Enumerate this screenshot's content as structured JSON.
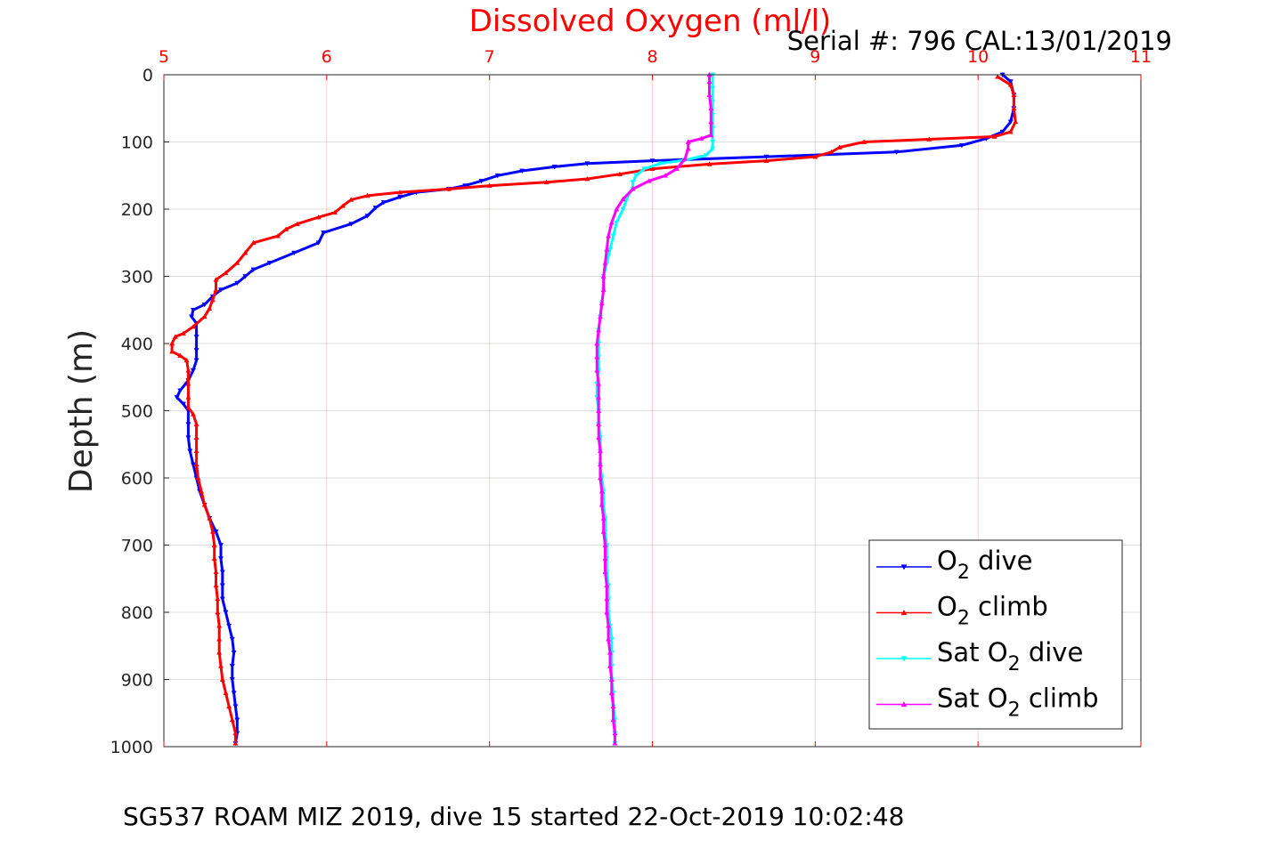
{
  "chart_data": {
    "type": "line",
    "title": "Dissolved Oxygen (ml/l)",
    "subtitle": "Serial #: 796  CAL:13/01/2019",
    "caption": "SG537 ROAM MIZ 2019, dive 15 started 22-Oct-2019 10:02:48",
    "xlabel": "",
    "ylabel": "Depth (m)",
    "xlim": [
      5,
      11
    ],
    "ylim": [
      0,
      1000
    ],
    "y_reversed": true,
    "x_axis_position": "top",
    "xticks": [
      "5",
      "6",
      "7",
      "8",
      "9",
      "10",
      "11"
    ],
    "yticks": [
      "0",
      "100",
      "200",
      "300",
      "400",
      "500",
      "600",
      "700",
      "800",
      "900",
      "1000"
    ],
    "grid": true,
    "legend_position": "bottom-right",
    "colors": {
      "title": "#ff0000",
      "xtick": "#ff0000"
    },
    "series": [
      {
        "name": "O2 dive",
        "legend": {
          "main": "O",
          "sub": "2",
          "suffix": " dive",
          "prefix": ""
        },
        "color": "#0000ff",
        "marker": "triangle-down",
        "points": [
          [
            10.15,
            0
          ],
          [
            10.2,
            10
          ],
          [
            10.22,
            30
          ],
          [
            10.22,
            50
          ],
          [
            10.2,
            70
          ],
          [
            10.15,
            85
          ],
          [
            10.05,
            95
          ],
          [
            9.9,
            105
          ],
          [
            9.5,
            115
          ],
          [
            8.7,
            122
          ],
          [
            8.0,
            128
          ],
          [
            7.6,
            132
          ],
          [
            7.4,
            137
          ],
          [
            7.2,
            143
          ],
          [
            7.05,
            150
          ],
          [
            6.95,
            158
          ],
          [
            6.85,
            165
          ],
          [
            6.75,
            170
          ],
          [
            6.55,
            175
          ],
          [
            6.45,
            182
          ],
          [
            6.35,
            190
          ],
          [
            6.3,
            198
          ],
          [
            6.25,
            210
          ],
          [
            6.15,
            222
          ],
          [
            5.98,
            235
          ],
          [
            5.95,
            250
          ],
          [
            5.8,
            265
          ],
          [
            5.65,
            280
          ],
          [
            5.55,
            290
          ],
          [
            5.5,
            300
          ],
          [
            5.45,
            310
          ],
          [
            5.35,
            320
          ],
          [
            5.3,
            330
          ],
          [
            5.25,
            342
          ],
          [
            5.18,
            350
          ],
          [
            5.17,
            360
          ],
          [
            5.2,
            370
          ],
          [
            5.2,
            390
          ],
          [
            5.2,
            410
          ],
          [
            5.2,
            425
          ],
          [
            5.18,
            440
          ],
          [
            5.15,
            455
          ],
          [
            5.1,
            470
          ],
          [
            5.08,
            480
          ],
          [
            5.12,
            490
          ],
          [
            5.15,
            500
          ],
          [
            5.15,
            520
          ],
          [
            5.15,
            540
          ],
          [
            5.16,
            560
          ],
          [
            5.18,
            580
          ],
          [
            5.2,
            600
          ],
          [
            5.22,
            620
          ],
          [
            5.25,
            640
          ],
          [
            5.28,
            660
          ],
          [
            5.32,
            680
          ],
          [
            5.35,
            700
          ],
          [
            5.35,
            720
          ],
          [
            5.36,
            740
          ],
          [
            5.36,
            760
          ],
          [
            5.36,
            780
          ],
          [
            5.38,
            800
          ],
          [
            5.4,
            820
          ],
          [
            5.42,
            840
          ],
          [
            5.43,
            860
          ],
          [
            5.42,
            880
          ],
          [
            5.42,
            900
          ],
          [
            5.43,
            920
          ],
          [
            5.44,
            940
          ],
          [
            5.45,
            960
          ],
          [
            5.45,
            980
          ],
          [
            5.44,
            995
          ]
        ]
      },
      {
        "name": "O2 climb",
        "legend": {
          "main": "O",
          "sub": "2",
          "suffix": " climb",
          "prefix": ""
        },
        "color": "#ff0000",
        "marker": "triangle-up",
        "points": [
          [
            5.44,
            995
          ],
          [
            5.44,
            980
          ],
          [
            5.42,
            960
          ],
          [
            5.4,
            940
          ],
          [
            5.38,
            920
          ],
          [
            5.36,
            900
          ],
          [
            5.35,
            880
          ],
          [
            5.34,
            860
          ],
          [
            5.34,
            840
          ],
          [
            5.34,
            820
          ],
          [
            5.33,
            800
          ],
          [
            5.33,
            780
          ],
          [
            5.32,
            760
          ],
          [
            5.32,
            740
          ],
          [
            5.31,
            720
          ],
          [
            5.31,
            700
          ],
          [
            5.3,
            680
          ],
          [
            5.28,
            660
          ],
          [
            5.25,
            640
          ],
          [
            5.23,
            620
          ],
          [
            5.21,
            600
          ],
          [
            5.2,
            580
          ],
          [
            5.2,
            560
          ],
          [
            5.2,
            540
          ],
          [
            5.2,
            520
          ],
          [
            5.18,
            505
          ],
          [
            5.15,
            495
          ],
          [
            5.15,
            480
          ],
          [
            5.15,
            460
          ],
          [
            5.15,
            440
          ],
          [
            5.14,
            425
          ],
          [
            5.1,
            418
          ],
          [
            5.05,
            412
          ],
          [
            5.05,
            400
          ],
          [
            5.07,
            390
          ],
          [
            5.12,
            385
          ],
          [
            5.18,
            375
          ],
          [
            5.25,
            360
          ],
          [
            5.28,
            348
          ],
          [
            5.3,
            335
          ],
          [
            5.32,
            320
          ],
          [
            5.32,
            305
          ],
          [
            5.38,
            295
          ],
          [
            5.45,
            280
          ],
          [
            5.5,
            265
          ],
          [
            5.55,
            250
          ],
          [
            5.7,
            240
          ],
          [
            5.75,
            230
          ],
          [
            5.82,
            222
          ],
          [
            5.95,
            212
          ],
          [
            6.05,
            205
          ],
          [
            6.1,
            195
          ],
          [
            6.15,
            186
          ],
          [
            6.25,
            180
          ],
          [
            6.45,
            175
          ],
          [
            6.75,
            170
          ],
          [
            7.0,
            165
          ],
          [
            7.35,
            160
          ],
          [
            7.6,
            155
          ],
          [
            7.8,
            148
          ],
          [
            8.0,
            140
          ],
          [
            8.35,
            133
          ],
          [
            8.7,
            128
          ],
          [
            9.0,
            122
          ],
          [
            9.1,
            115
          ],
          [
            9.15,
            108
          ],
          [
            9.3,
            100
          ],
          [
            9.7,
            96
          ],
          [
            10.1,
            92
          ],
          [
            10.2,
            85
          ],
          [
            10.23,
            70
          ],
          [
            10.22,
            50
          ],
          [
            10.22,
            30
          ],
          [
            10.2,
            15
          ],
          [
            10.12,
            3
          ]
        ]
      },
      {
        "name": "Sat O2 dive",
        "legend": {
          "main": "O",
          "sub": "2",
          "suffix": " dive",
          "prefix": "Sat "
        },
        "color": "#00ffff",
        "marker": "triangle-down",
        "points": [
          [
            8.37,
            0
          ],
          [
            8.37,
            20
          ],
          [
            8.37,
            40
          ],
          [
            8.37,
            60
          ],
          [
            8.37,
            80
          ],
          [
            8.37,
            100
          ],
          [
            8.37,
            110
          ],
          [
            8.33,
            120
          ],
          [
            8.2,
            127
          ],
          [
            8.05,
            132
          ],
          [
            7.95,
            140
          ],
          [
            7.9,
            150
          ],
          [
            7.88,
            160
          ],
          [
            7.88,
            170
          ],
          [
            7.85,
            180
          ],
          [
            7.82,
            200
          ],
          [
            7.78,
            220
          ],
          [
            7.76,
            240
          ],
          [
            7.74,
            260
          ],
          [
            7.72,
            280
          ],
          [
            7.7,
            300
          ],
          [
            7.7,
            320
          ],
          [
            7.69,
            340
          ],
          [
            7.68,
            360
          ],
          [
            7.67,
            380
          ],
          [
            7.67,
            400
          ],
          [
            7.67,
            420
          ],
          [
            7.67,
            440
          ],
          [
            7.66,
            460
          ],
          [
            7.66,
            480
          ],
          [
            7.67,
            500
          ],
          [
            7.67,
            520
          ],
          [
            7.68,
            540
          ],
          [
            7.68,
            560
          ],
          [
            7.68,
            580
          ],
          [
            7.69,
            600
          ],
          [
            7.7,
            620
          ],
          [
            7.7,
            640
          ],
          [
            7.71,
            660
          ],
          [
            7.71,
            680
          ],
          [
            7.72,
            700
          ],
          [
            7.72,
            720
          ],
          [
            7.72,
            740
          ],
          [
            7.73,
            760
          ],
          [
            7.73,
            780
          ],
          [
            7.73,
            800
          ],
          [
            7.74,
            820
          ],
          [
            7.75,
            840
          ],
          [
            7.75,
            860
          ],
          [
            7.75,
            880
          ],
          [
            7.75,
            900
          ],
          [
            7.76,
            920
          ],
          [
            7.76,
            940
          ],
          [
            7.77,
            960
          ],
          [
            7.77,
            980
          ],
          [
            7.77,
            995
          ]
        ]
      },
      {
        "name": "Sat O2 climb",
        "legend": {
          "main": "O",
          "sub": "2",
          "suffix": " climb",
          "prefix": "Sat "
        },
        "color": "#ff00ff",
        "marker": "triangle-up",
        "points": [
          [
            7.77,
            995
          ],
          [
            7.77,
            980
          ],
          [
            7.76,
            960
          ],
          [
            7.76,
            940
          ],
          [
            7.75,
            920
          ],
          [
            7.75,
            900
          ],
          [
            7.74,
            880
          ],
          [
            7.74,
            860
          ],
          [
            7.73,
            840
          ],
          [
            7.73,
            820
          ],
          [
            7.72,
            800
          ],
          [
            7.72,
            780
          ],
          [
            7.72,
            760
          ],
          [
            7.71,
            740
          ],
          [
            7.71,
            720
          ],
          [
            7.71,
            700
          ],
          [
            7.7,
            680
          ],
          [
            7.7,
            660
          ],
          [
            7.69,
            640
          ],
          [
            7.69,
            620
          ],
          [
            7.68,
            600
          ],
          [
            7.68,
            580
          ],
          [
            7.68,
            560
          ],
          [
            7.67,
            540
          ],
          [
            7.67,
            520
          ],
          [
            7.67,
            500
          ],
          [
            7.67,
            480
          ],
          [
            7.67,
            460
          ],
          [
            7.66,
            440
          ],
          [
            7.66,
            420
          ],
          [
            7.66,
            400
          ],
          [
            7.67,
            380
          ],
          [
            7.68,
            360
          ],
          [
            7.69,
            340
          ],
          [
            7.7,
            320
          ],
          [
            7.7,
            300
          ],
          [
            7.71,
            280
          ],
          [
            7.72,
            260
          ],
          [
            7.73,
            240
          ],
          [
            7.75,
            220
          ],
          [
            7.78,
            200
          ],
          [
            7.82,
            185
          ],
          [
            7.88,
            170
          ],
          [
            7.98,
            158
          ],
          [
            8.08,
            150
          ],
          [
            8.15,
            140
          ],
          [
            8.2,
            125
          ],
          [
            8.22,
            110
          ],
          [
            8.22,
            100
          ],
          [
            8.3,
            95
          ],
          [
            8.36,
            90
          ],
          [
            8.36,
            70
          ],
          [
            8.36,
            50
          ],
          [
            8.35,
            30
          ],
          [
            8.35,
            10
          ],
          [
            8.35,
            0
          ]
        ]
      }
    ]
  }
}
